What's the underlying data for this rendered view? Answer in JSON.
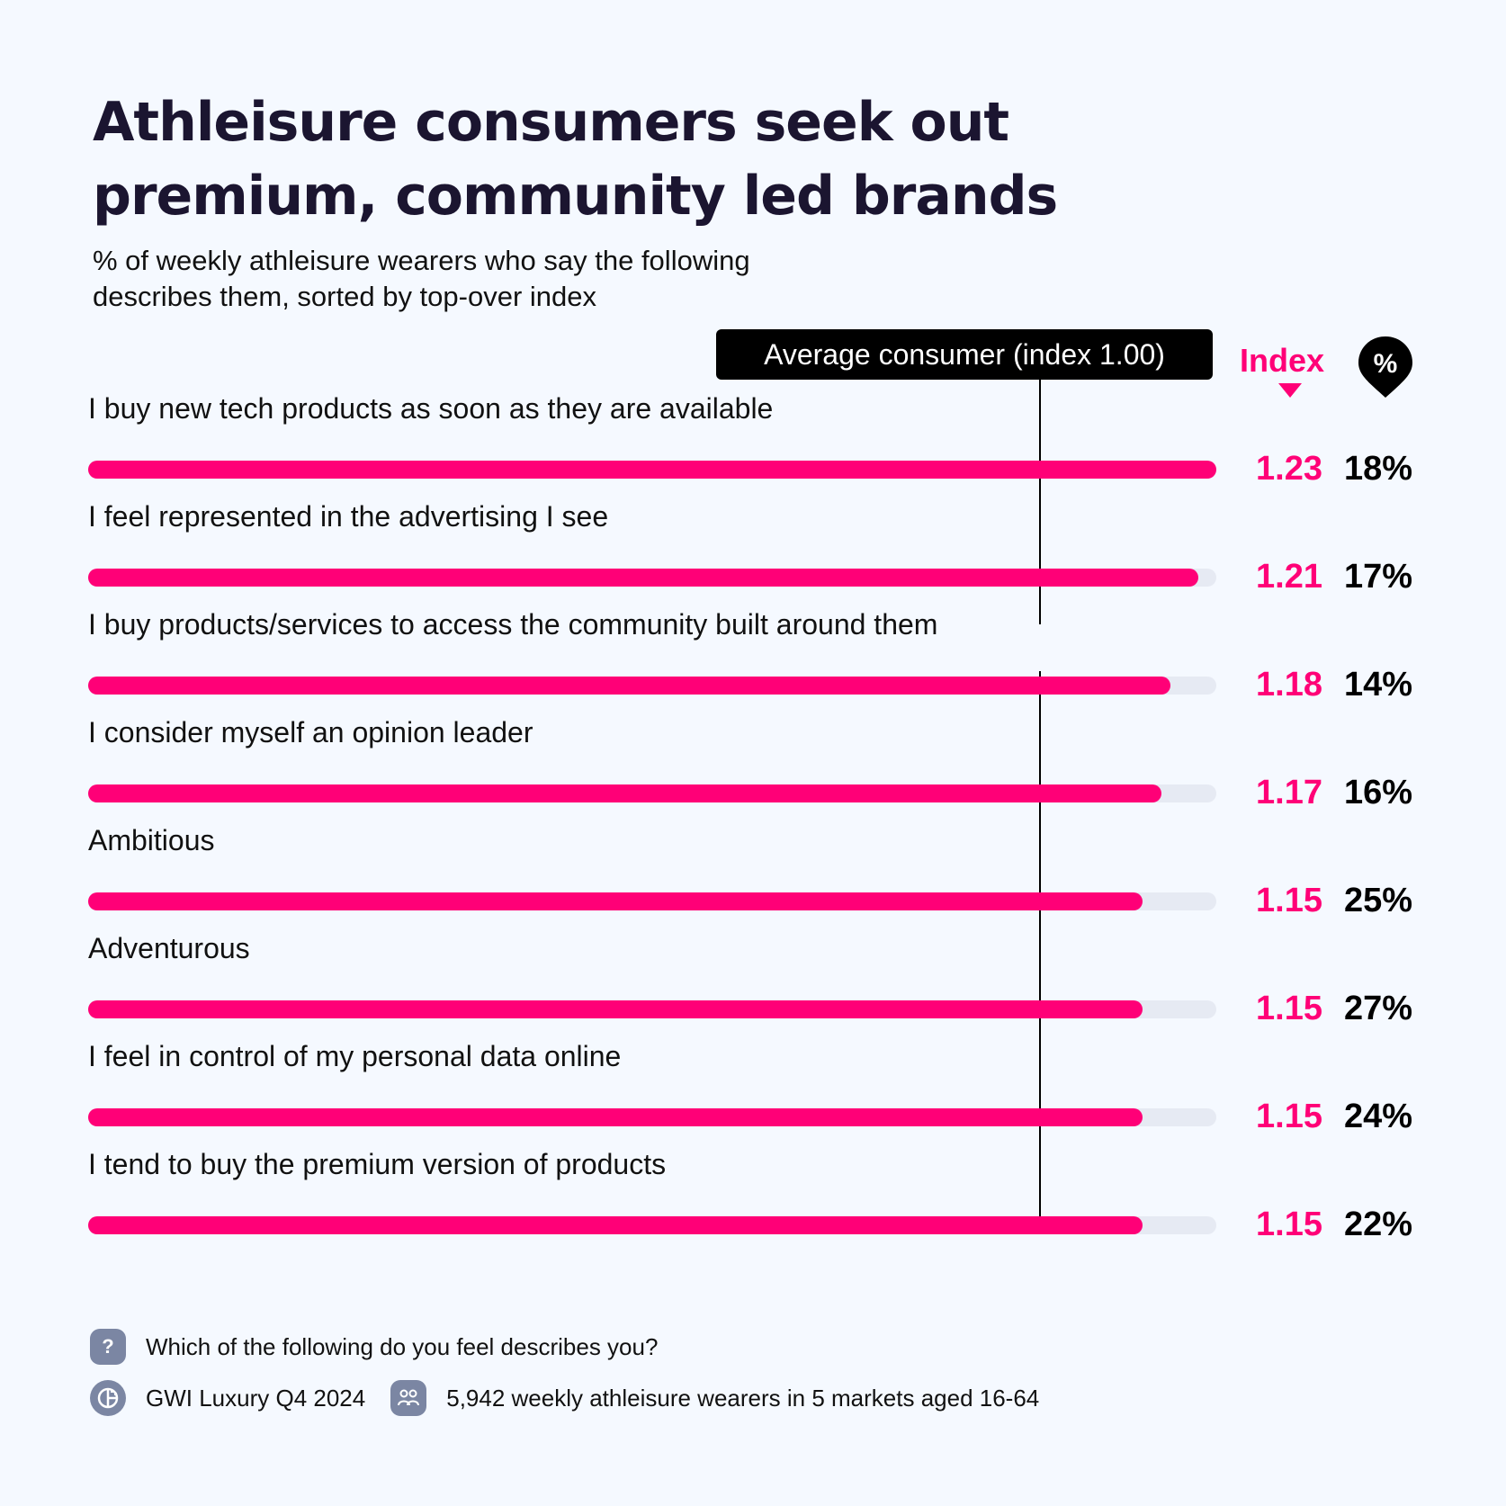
{
  "header": {
    "title_line1": "Athleisure consumers seek out",
    "title_line2": "premium, community led brands",
    "subtitle_line1": "% of weekly athleisure wearers who say the following",
    "subtitle_line2": "describes them, sorted by top-over index"
  },
  "legend": {
    "average_label": "Average consumer (index 1.00)",
    "index_header": "Index",
    "percent_header": "%",
    "sort_arrow_icon": "triangle-down-icon",
    "percent_icon": "percent-pin-icon"
  },
  "colors": {
    "accent": "#ff0077",
    "track": "#e6eaf3",
    "background": "#f5f9ff",
    "title": "#1b1530",
    "icon_bg": "#7b86a3"
  },
  "chart_data": {
    "type": "bar",
    "orientation": "horizontal",
    "title": "Athleisure consumers seek out premium, community led brands",
    "subtitle": "% of weekly athleisure wearers who say the following describes them, sorted by top-over index",
    "reference_line": {
      "label": "Average consumer (index 1.00)",
      "value": 1.0
    },
    "xlim": [
      0,
      1.23
    ],
    "grid": false,
    "categories": [
      "I buy new tech products as soon as they are available",
      "I feel represented in the advertising I see",
      "I buy products/services to access the community built around them",
      "I consider myself an opinion leader",
      "Ambitious",
      "Adventurous",
      "I feel in control of my personal data online",
      "I tend to buy the premium version of products"
    ],
    "series": [
      {
        "name": "Index",
        "values": [
          1.23,
          1.21,
          1.18,
          1.17,
          1.15,
          1.15,
          1.15,
          1.15
        ],
        "labels": [
          "1.23",
          "1.21",
          "1.18",
          "1.17",
          "1.15",
          "1.15",
          "1.15",
          "1.15"
        ]
      },
      {
        "name": "%",
        "values": [
          18,
          17,
          14,
          16,
          25,
          27,
          24,
          22
        ],
        "labels": [
          "18%",
          "17%",
          "14%",
          "16%",
          "25%",
          "27%",
          "24%",
          "22%"
        ]
      }
    ]
  },
  "footer": {
    "question_icon": "question-icon",
    "question": "Which of the following do you feel describes you?",
    "source_icon": "gwi-logo-icon",
    "source": "GWI Luxury Q4 2024",
    "sample_icon": "people-icon",
    "sample": "5,942 weekly athleisure wearers in 5 markets aged 16-64"
  }
}
